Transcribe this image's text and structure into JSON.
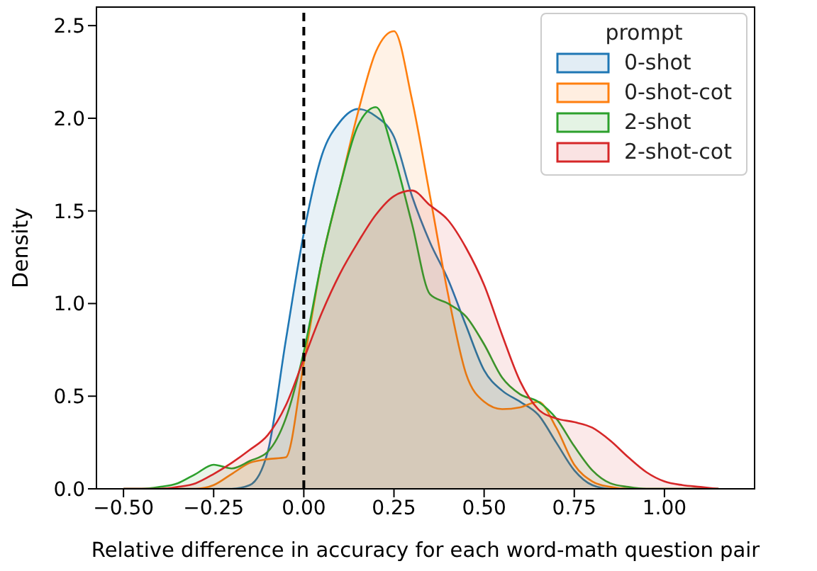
{
  "chart_data": {
    "type": "area",
    "xlabel": "Relative difference in accuracy for each word-math question pair",
    "ylabel": "Density",
    "legend_title": "prompt",
    "legend": "top right",
    "x": [
      -0.5,
      -0.45,
      -0.4,
      -0.35,
      -0.3,
      -0.25,
      -0.2,
      -0.15,
      -0.1,
      -0.05,
      0,
      0.05,
      0.1,
      0.15,
      0.2,
      0.25,
      0.3,
      0.35,
      0.4,
      0.45,
      0.5,
      0.55,
      0.6,
      0.65,
      0.7,
      0.75,
      0.8,
      0.85,
      0.9,
      0.95,
      1.0,
      1.05,
      1.1,
      1.15
    ],
    "series": [
      {
        "name": "0-shot",
        "color": "#1f77b4",
        "values": [
          0,
          0,
          0,
          0,
          0,
          0,
          0,
          0.02,
          0.2,
          0.8,
          1.38,
          1.8,
          1.98,
          2.05,
          2.01,
          1.9,
          1.58,
          1.33,
          1.13,
          0.88,
          0.64,
          0.53,
          0.47,
          0.4,
          0.25,
          0.1,
          0.02,
          0,
          0,
          0,
          0,
          0,
          0,
          0
        ]
      },
      {
        "name": "0-shot-cot",
        "color": "#ff7f0e",
        "values": [
          0,
          0,
          0,
          0,
          0,
          0.02,
          0.08,
          0.14,
          0.16,
          0.17,
          0.68,
          1.23,
          1.63,
          2.03,
          2.36,
          2.47,
          2.1,
          1.58,
          1.05,
          0.62,
          0.47,
          0.43,
          0.44,
          0.47,
          0.33,
          0.13,
          0.04,
          0.01,
          0,
          0,
          0,
          0,
          0,
          0
        ]
      },
      {
        "name": "2-shot",
        "color": "#2ca02c",
        "values": [
          0,
          0,
          0.01,
          0.03,
          0.08,
          0.13,
          0.11,
          0.15,
          0.2,
          0.38,
          0.74,
          1.23,
          1.63,
          1.96,
          2.06,
          1.8,
          1.43,
          1.05,
          1.0,
          0.93,
          0.78,
          0.6,
          0.51,
          0.47,
          0.38,
          0.23,
          0.1,
          0.03,
          0.01,
          0,
          0,
          0,
          0,
          0
        ]
      },
      {
        "name": "2-shot-cot",
        "color": "#d62728",
        "values": [
          0,
          0,
          0,
          0.01,
          0.03,
          0.08,
          0.14,
          0.21,
          0.29,
          0.45,
          0.7,
          0.95,
          1.16,
          1.33,
          1.48,
          1.58,
          1.61,
          1.53,
          1.45,
          1.3,
          1.1,
          0.83,
          0.58,
          0.43,
          0.38,
          0.36,
          0.33,
          0.26,
          0.17,
          0.09,
          0.04,
          0.02,
          0.01,
          0
        ]
      }
    ],
    "xlim": [
      -0.575,
      1.25
    ],
    "xticks": [
      {
        "value": -0.5,
        "label": "−0.50"
      },
      {
        "value": -0.25,
        "label": "−0.25"
      },
      {
        "value": 0,
        "label": "0.00"
      },
      {
        "value": 0.25,
        "label": "0.25"
      },
      {
        "value": 0.5,
        "label": "0.50"
      },
      {
        "value": 0.75,
        "label": "0.75"
      },
      {
        "value": 1,
        "label": "1.00"
      }
    ],
    "ylim": [
      0,
      2.6
    ],
    "yticks": [
      {
        "value": 0,
        "label": "0.0"
      },
      {
        "value": 0.5,
        "label": "0.5"
      },
      {
        "value": 1,
        "label": "1.0"
      },
      {
        "value": 1.5,
        "label": "1.5"
      },
      {
        "value": 2,
        "label": "2.0"
      },
      {
        "value": 2.5,
        "label": "2.5"
      }
    ],
    "ref_lines": [
      {
        "axis": "x",
        "value": 0,
        "label": null,
        "color": "#000000",
        "line_style": "dashed"
      }
    ],
    "grid": false
  }
}
